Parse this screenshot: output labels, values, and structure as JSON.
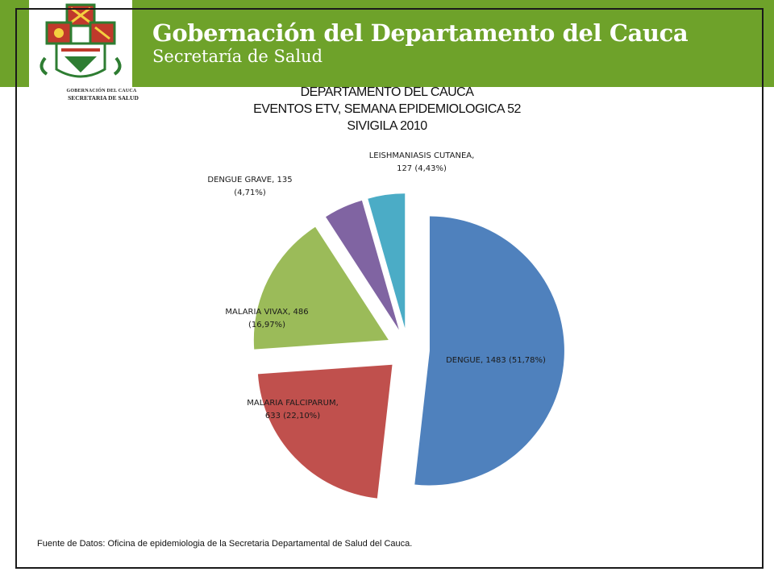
{
  "header": {
    "title": "Gobernación del Departamento del Cauca",
    "subtitle": "Secretaría de Salud",
    "accent_color": "#6ea22a"
  },
  "logo": {
    "seal_text_top": "GOBERNACIÓN DEL CAUCA",
    "seal_text_bottom": "SECRETARIA DE SALUD",
    "icon": "department-coat-of-arms"
  },
  "chart_data": {
    "type": "pie",
    "title_lines": [
      "DEPARTAMENTO DEL CAUCA",
      "EVENTOS ETV, SEMANA EPIDEMIOLOGICA 52",
      "SIVIGILA 2010"
    ],
    "slices": [
      {
        "name": "DENGUE",
        "value": 1483,
        "percent_label": "51,78%",
        "color": "#4f81bd",
        "label_lines": [
          "DENGUE,  1483 (51,78%)"
        ]
      },
      {
        "name": "MALARIA FALCIPARUM",
        "value": 633,
        "percent_label": "22,10%",
        "color": "#c0504d",
        "label_lines": [
          "MALARIA FALCIPARUM,",
          "633 (22,10%)"
        ]
      },
      {
        "name": "MALARIA VIVAX",
        "value": 486,
        "percent_label": "16,97%",
        "color": "#9bbb59",
        "label_lines": [
          "MALARIA VIVAX, 486",
          "(16,97%)"
        ]
      },
      {
        "name": "DENGUE GRAVE",
        "value": 135,
        "percent_label": "4,71%",
        "color": "#8064a2",
        "label_lines": [
          "DENGUE  GRAVE,  135",
          "(4,71%)"
        ]
      },
      {
        "name": "LEISHMANIASIS CUTANEA",
        "value": 127,
        "percent_label": "4,43%",
        "color": "#4bacc6",
        "label_lines": [
          "LEISHMANIASIS CUTANEA,",
          "127 (4,43%)"
        ]
      }
    ],
    "exploded": true,
    "legend": "none"
  },
  "footer": {
    "source": "Fuente  de Datos: Oficina de epidemiologia de la Secretaria Departamental de Salud del Cauca."
  }
}
